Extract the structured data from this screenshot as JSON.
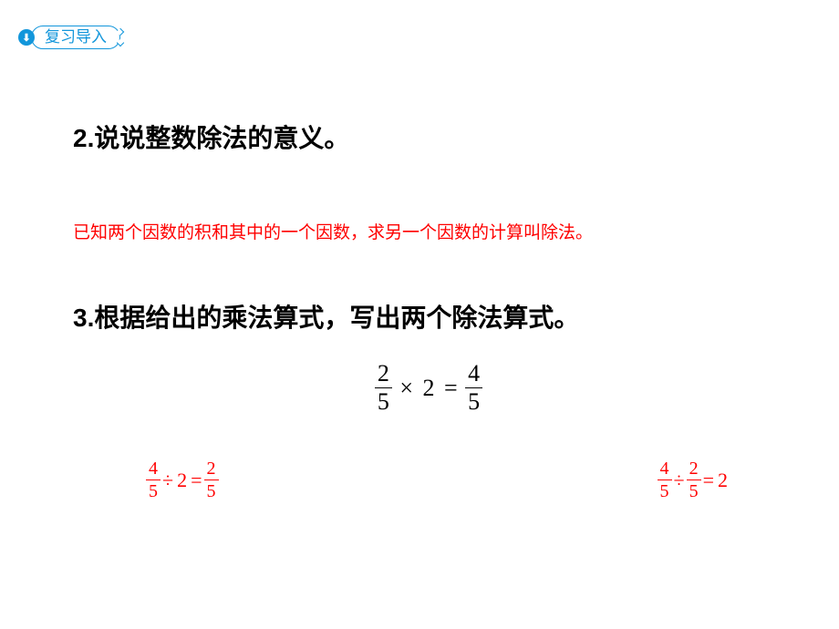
{
  "colors": {
    "brand": "#1296db",
    "text": "#000000",
    "answer": "#ff0000",
    "background": "#ffffff"
  },
  "fonts": {
    "body": "Microsoft YaHei",
    "math": "Cambria Math",
    "title_size_pt": 28,
    "answer_size_pt": 19,
    "badge_size_pt": 17
  },
  "badge": {
    "icon": "⬇",
    "label": "复习导入"
  },
  "q2": {
    "title": "2.说说整数除法的意义。",
    "answer": "已知两个因数的积和其中的一个因数，求另一个因数的计算叫除法。"
  },
  "q3": {
    "title": "3.根据给出的乘法算式，写出两个除法算式。",
    "equation": {
      "left_num": "2",
      "left_den": "5",
      "op1": "×",
      "mid": "2",
      "eq": "=",
      "right_num": "4",
      "right_den": "5"
    },
    "answers": [
      {
        "a_num": "4",
        "a_den": "5",
        "op": "÷",
        "b": "2",
        "eq": "=",
        "c_num": "2",
        "c_den": "5"
      },
      {
        "a_num": "4",
        "a_den": "5",
        "op": "÷",
        "b_num": "2",
        "b_den": "5",
        "eq": "=",
        "c": "2"
      }
    ]
  }
}
